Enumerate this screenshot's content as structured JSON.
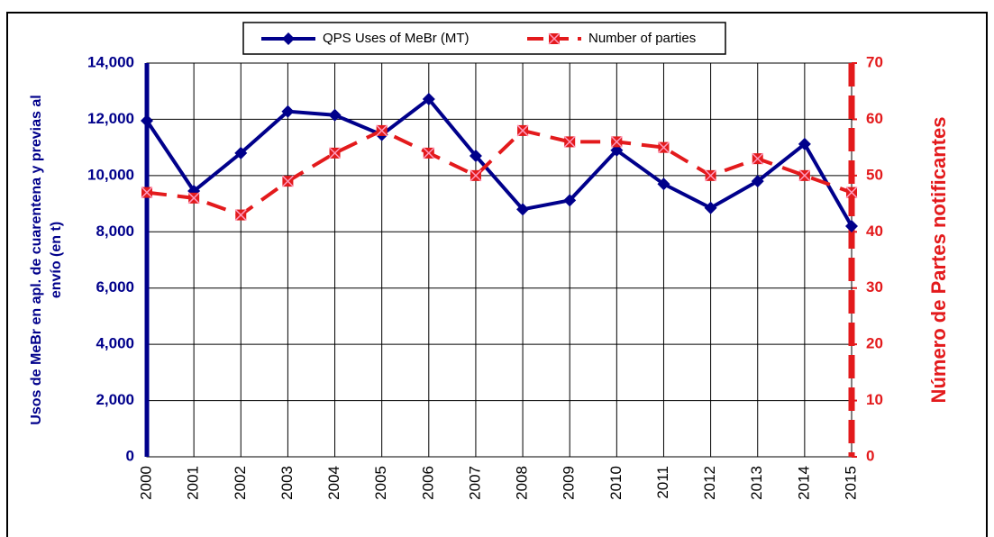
{
  "chart_data": {
    "type": "line",
    "x": [
      2000,
      2001,
      2002,
      2003,
      2004,
      2005,
      2006,
      2007,
      2008,
      2009,
      2010,
      2011,
      2012,
      2013,
      2014,
      2015
    ],
    "xlim": [
      2000,
      2015
    ],
    "xticks": [
      2000,
      2001,
      2002,
      2003,
      2004,
      2005,
      2006,
      2007,
      2008,
      2009,
      2010,
      2011,
      2012,
      2013,
      2014,
      2015
    ],
    "ylim": [
      0,
      14000
    ],
    "yticks": [
      0,
      {
        "value": 2000,
        "label": "2,000"
      },
      {
        "value": 4000,
        "label": "4,000"
      },
      {
        "value": 6000,
        "label": "6,000"
      },
      {
        "value": 8000,
        "label": "8,000"
      },
      {
        "value": 10000,
        "label": "10,000"
      },
      {
        "value": 12000,
        "label": "12,000"
      },
      {
        "value": 14000,
        "label": "14,000"
      }
    ],
    "y2lim": [
      0,
      70
    ],
    "y2ticks": [
      0,
      10,
      20,
      30,
      40,
      50,
      60,
      70
    ],
    "y_label": [
      "Usos de MeBr en apl. de cuarentena y previas al",
      "envío (en t)"
    ],
    "y2_label": "Número de Partes notificantes",
    "grid": true,
    "legend": "top",
    "series": [
      {
        "name": "QPS Uses of MeBr (MT)",
        "color": "#00008b",
        "marker": "diamond",
        "values": [
          11950,
          9450,
          10800,
          12280,
          12150,
          11450,
          12720,
          10700,
          8800,
          9120,
          10900,
          9700,
          8850,
          9800,
          11120,
          8200
        ]
      },
      {
        "name": "Number of parties",
        "color": "#e31a1c",
        "marker": "square",
        "dashed": true,
        "axis": "y2",
        "values": [
          47,
          46,
          43,
          49,
          54,
          58,
          54,
          50,
          58,
          56,
          56,
          55,
          50,
          53,
          50,
          47
        ]
      }
    ]
  }
}
